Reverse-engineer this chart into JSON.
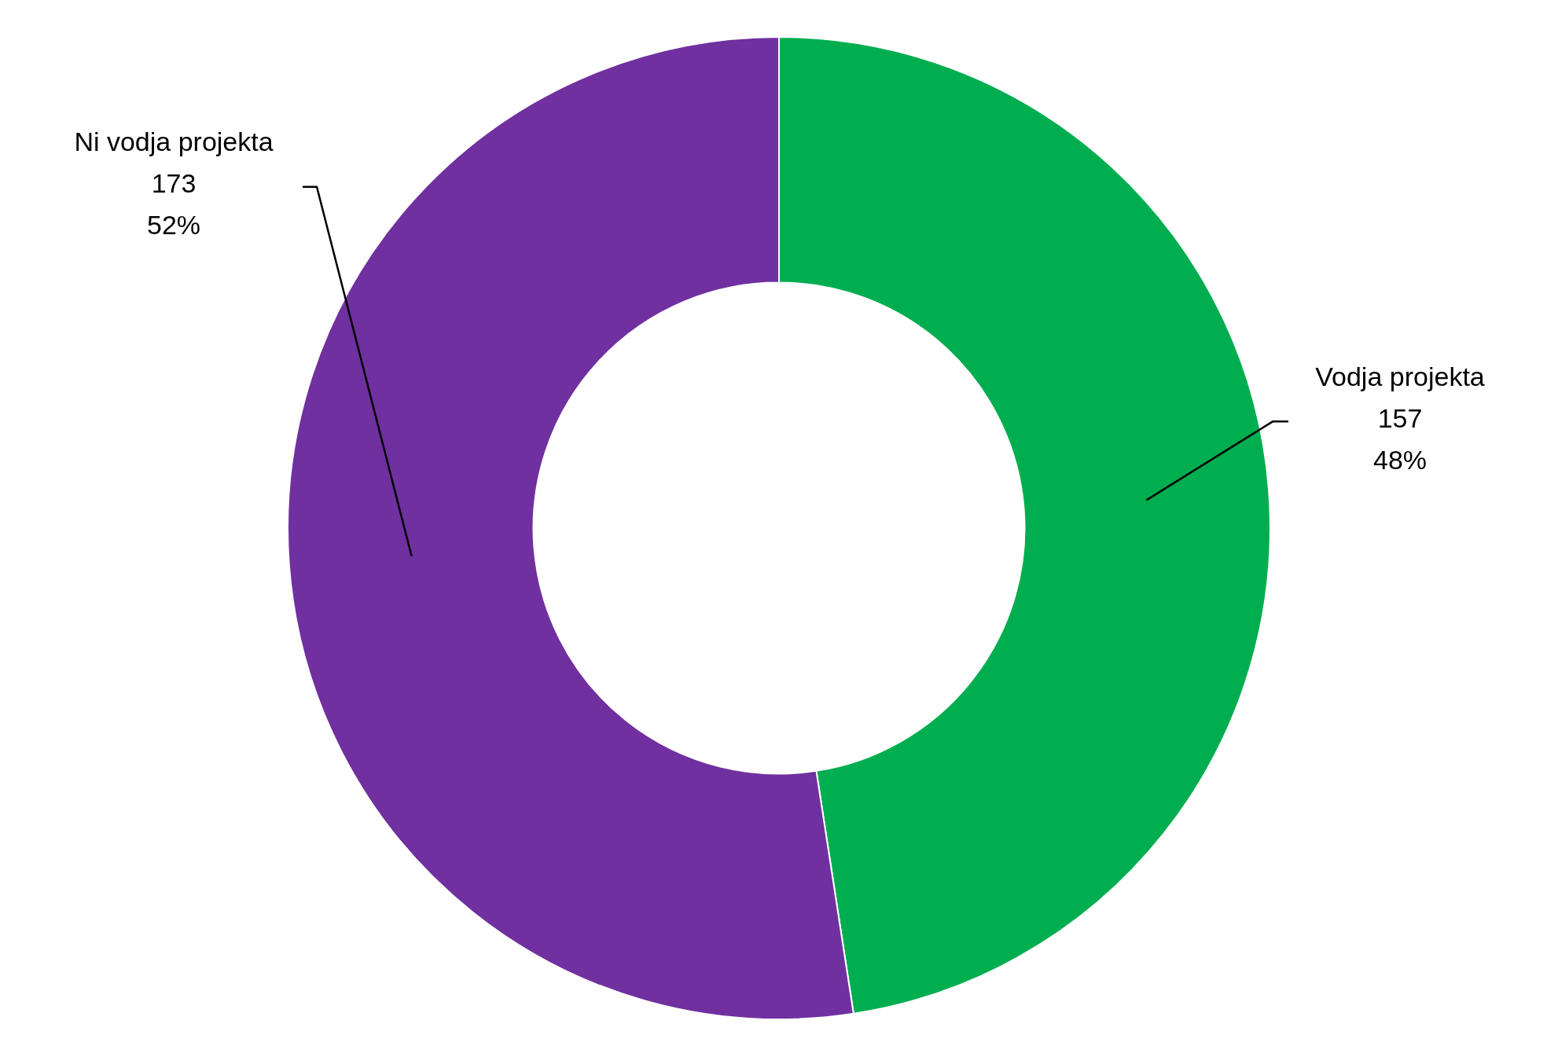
{
  "chart_data": {
    "type": "donut",
    "categories": [
      "Vodja projekta",
      "Ni vodja projekta"
    ],
    "values": [
      157,
      173
    ],
    "colors": [
      "#00ae4f",
      "#7030a0"
    ],
    "value_labels": [
      "157\n48%",
      "173\n52%"
    ],
    "legend": false
  }
}
